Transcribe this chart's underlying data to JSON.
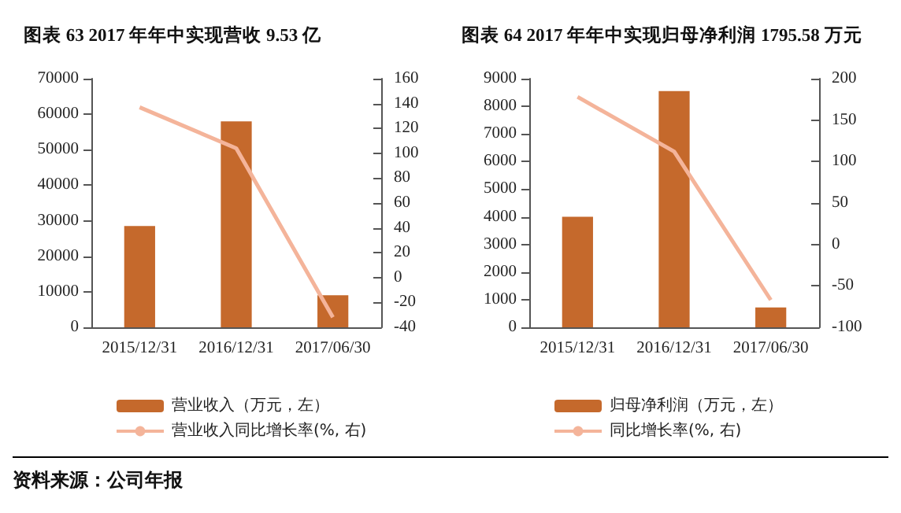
{
  "chart_data": [
    {
      "type": "bar",
      "title": "图表 63 2017 年年中实现营收 9.53 亿",
      "categories": [
        "2015/12/31",
        "2016/12/31",
        "2017/06/30"
      ],
      "series": [
        {
          "name": "营业收入（万元，左）",
          "color": "#c5692c",
          "values": [
            28500,
            58000,
            9000
          ]
        },
        {
          "type": "line",
          "name": "营业收入同比增长率(%, 右)",
          "color": "#f4b49a",
          "values": [
            137,
            104,
            -32
          ],
          "axis": "y2"
        }
      ],
      "ylim": [
        0,
        70000
      ],
      "yticks": [
        0,
        10000,
        20000,
        30000,
        40000,
        50000,
        60000,
        70000
      ],
      "y2lim": [
        -40,
        160
      ],
      "y2ticks": [
        -40,
        -20,
        0,
        20,
        40,
        60,
        80,
        100,
        120,
        140,
        160
      ],
      "legend": "bottom",
      "marker": "none",
      "annotations": [
        "资料来源：公司年报"
      ]
    },
    {
      "type": "bar",
      "title": "图表 64 2017 年年中实现归母净利润 1795.58 万元",
      "categories": [
        "2015/12/31",
        "2016/12/31",
        "2017/06/30"
      ],
      "series": [
        {
          "name": "归母净利润（万元，左）",
          "color": "#c5692c",
          "values": [
            4000,
            8550,
            720
          ]
        },
        {
          "type": "line",
          "name": "同比增长率(%, 右)",
          "color": "#f4b49a",
          "values": [
            178,
            112,
            -67
          ],
          "axis": "y2"
        }
      ],
      "ylim": [
        0,
        9000
      ],
      "yticks": [
        0,
        1000,
        2000,
        3000,
        4000,
        5000,
        6000,
        7000,
        8000,
        9000
      ],
      "y2lim": [
        -100,
        200
      ],
      "y2ticks": [
        -100,
        -50,
        0,
        50,
        100,
        150,
        200
      ],
      "legend": "bottom",
      "marker": "none"
    }
  ]
}
